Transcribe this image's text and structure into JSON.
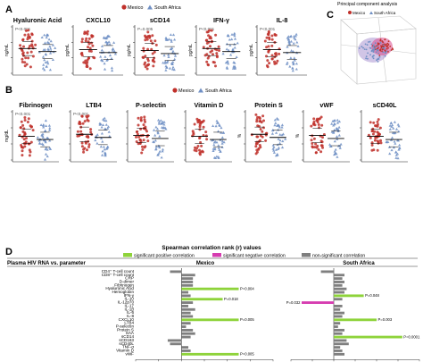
{
  "panel_labels": {
    "a": "A",
    "b": "B",
    "c": "C",
    "d": "D"
  },
  "legend": {
    "mexico": "Mexico",
    "south_africa": "South Africa"
  },
  "colors": {
    "mexico": "#c0302a",
    "south_africa": "#6f8fc4",
    "sig_pos": "#8ed33a",
    "sig_neg": "#d63cb0",
    "nonsig": "#7f7f7f"
  },
  "pca": {
    "title": "Principal component analysis"
  },
  "panel_a": [
    {
      "title": "Hyaluronic Acid",
      "unit": "ng/mL",
      "pval": "P<0.001"
    },
    {
      "title": "CXCL10",
      "unit": "pg/mL",
      "pval": ""
    },
    {
      "title": "sCD14",
      "unit": "pg/mL",
      "pval": "P=0.005"
    },
    {
      "title": "IFN-γ",
      "unit": "pg/mL",
      "pval": "P<0.001"
    },
    {
      "title": "IL-8",
      "unit": "pg/mL",
      "pval": "P<0.001"
    }
  ],
  "panel_b": [
    {
      "title": "Fibrinogen",
      "unit": "mg/dL",
      "pval": "P<0.001"
    },
    {
      "title": "LTB4",
      "unit": "",
      "pval": "P<0.001"
    },
    {
      "title": "P-selectin",
      "unit": "",
      "pval": ""
    },
    {
      "title": "Vitamin D",
      "unit": "",
      "pval": ""
    },
    {
      "title": "Protein S",
      "unit": "%",
      "pval": ""
    },
    {
      "title": "vWF",
      "unit": "%",
      "pval": ""
    },
    {
      "title": "sCD40L",
      "unit": "",
      "pval": ""
    }
  ],
  "chart_data": {
    "type": "bar",
    "title": "Spearman correlation rank (r) values",
    "legend_entries": [
      "significant positive correlation",
      "significant negative correlation",
      "non-significant correlation"
    ],
    "row_header": "Plasma HIV RNA vs. parameter",
    "categories": [
      "CD4⁺ T-cell count",
      "CD8⁺ T-cell count",
      "CRP",
      "D-dimer",
      "Fibrinogen",
      "Hyaluronic Acid",
      "Hemoglobin",
      "IFN-γ",
      "IL-10",
      "IL-12p70",
      "IL-17",
      "IL-1β",
      "IL-6",
      "IL-8",
      "CXCL10",
      "LTB4",
      "P-selectin",
      "Protein S",
      "SAA",
      "sCD14",
      "sCD163",
      "sCD40L",
      "TNF-α",
      "Vitamin D",
      "vWF"
    ],
    "xlim": [
      -0.2,
      0.4
    ],
    "xticks": [
      "-0.2",
      "-0.1",
      "0",
      "0.1",
      "0.2",
      "0.3",
      "0.4"
    ],
    "series": [
      {
        "name": "Mexico",
        "values": [
          -0.05,
          0.06,
          0.05,
          0.05,
          0.05,
          0.25,
          0.03,
          0.04,
          0.18,
          0.05,
          0.03,
          0.06,
          0.04,
          0.05,
          0.25,
          0.04,
          0.02,
          0.05,
          0.06,
          0.04,
          -0.06,
          -0.05,
          0.03,
          0.04,
          0.25
        ],
        "significance": [
          "ns",
          "ns",
          "ns",
          "ns",
          "ns",
          "pos",
          "ns",
          "ns",
          "pos",
          "ns",
          "ns",
          "ns",
          "ns",
          "ns",
          "pos",
          "ns",
          "ns",
          "ns",
          "ns",
          "ns",
          "ns",
          "ns",
          "ns",
          "ns",
          "pos"
        ],
        "labels": [
          "",
          "",
          "",
          "",
          "",
          "P=0.004",
          "",
          "",
          "P=0.018",
          "",
          "",
          "",
          "",
          "",
          "P=0.005",
          "",
          "",
          "",
          "",
          "",
          "",
          "",
          "",
          "",
          "P=0.005"
        ]
      },
      {
        "name": "South Africa",
        "values": [
          -0.06,
          0.05,
          0.04,
          0.05,
          0.04,
          0.06,
          0.05,
          0.14,
          0.04,
          -0.15,
          0.04,
          0.03,
          0.05,
          0.04,
          0.2,
          0.03,
          0.02,
          0.05,
          0.04,
          0.32,
          0.06,
          0.07,
          0.03,
          0.04,
          0.05
        ],
        "significance": [
          "ns",
          "ns",
          "ns",
          "ns",
          "ns",
          "ns",
          "ns",
          "pos",
          "ns",
          "neg",
          "ns",
          "ns",
          "ns",
          "ns",
          "pos",
          "ns",
          "ns",
          "ns",
          "ns",
          "pos",
          "ns",
          "ns",
          "ns",
          "ns",
          "ns"
        ],
        "labels": [
          "",
          "",
          "",
          "",
          "",
          "",
          "",
          "P=0.048",
          "",
          "P=0.032",
          "",
          "",
          "",
          "",
          "P=0.003",
          "",
          "",
          "",
          "",
          "P=0.0001",
          "",
          "",
          "",
          "",
          ""
        ]
      }
    ]
  }
}
